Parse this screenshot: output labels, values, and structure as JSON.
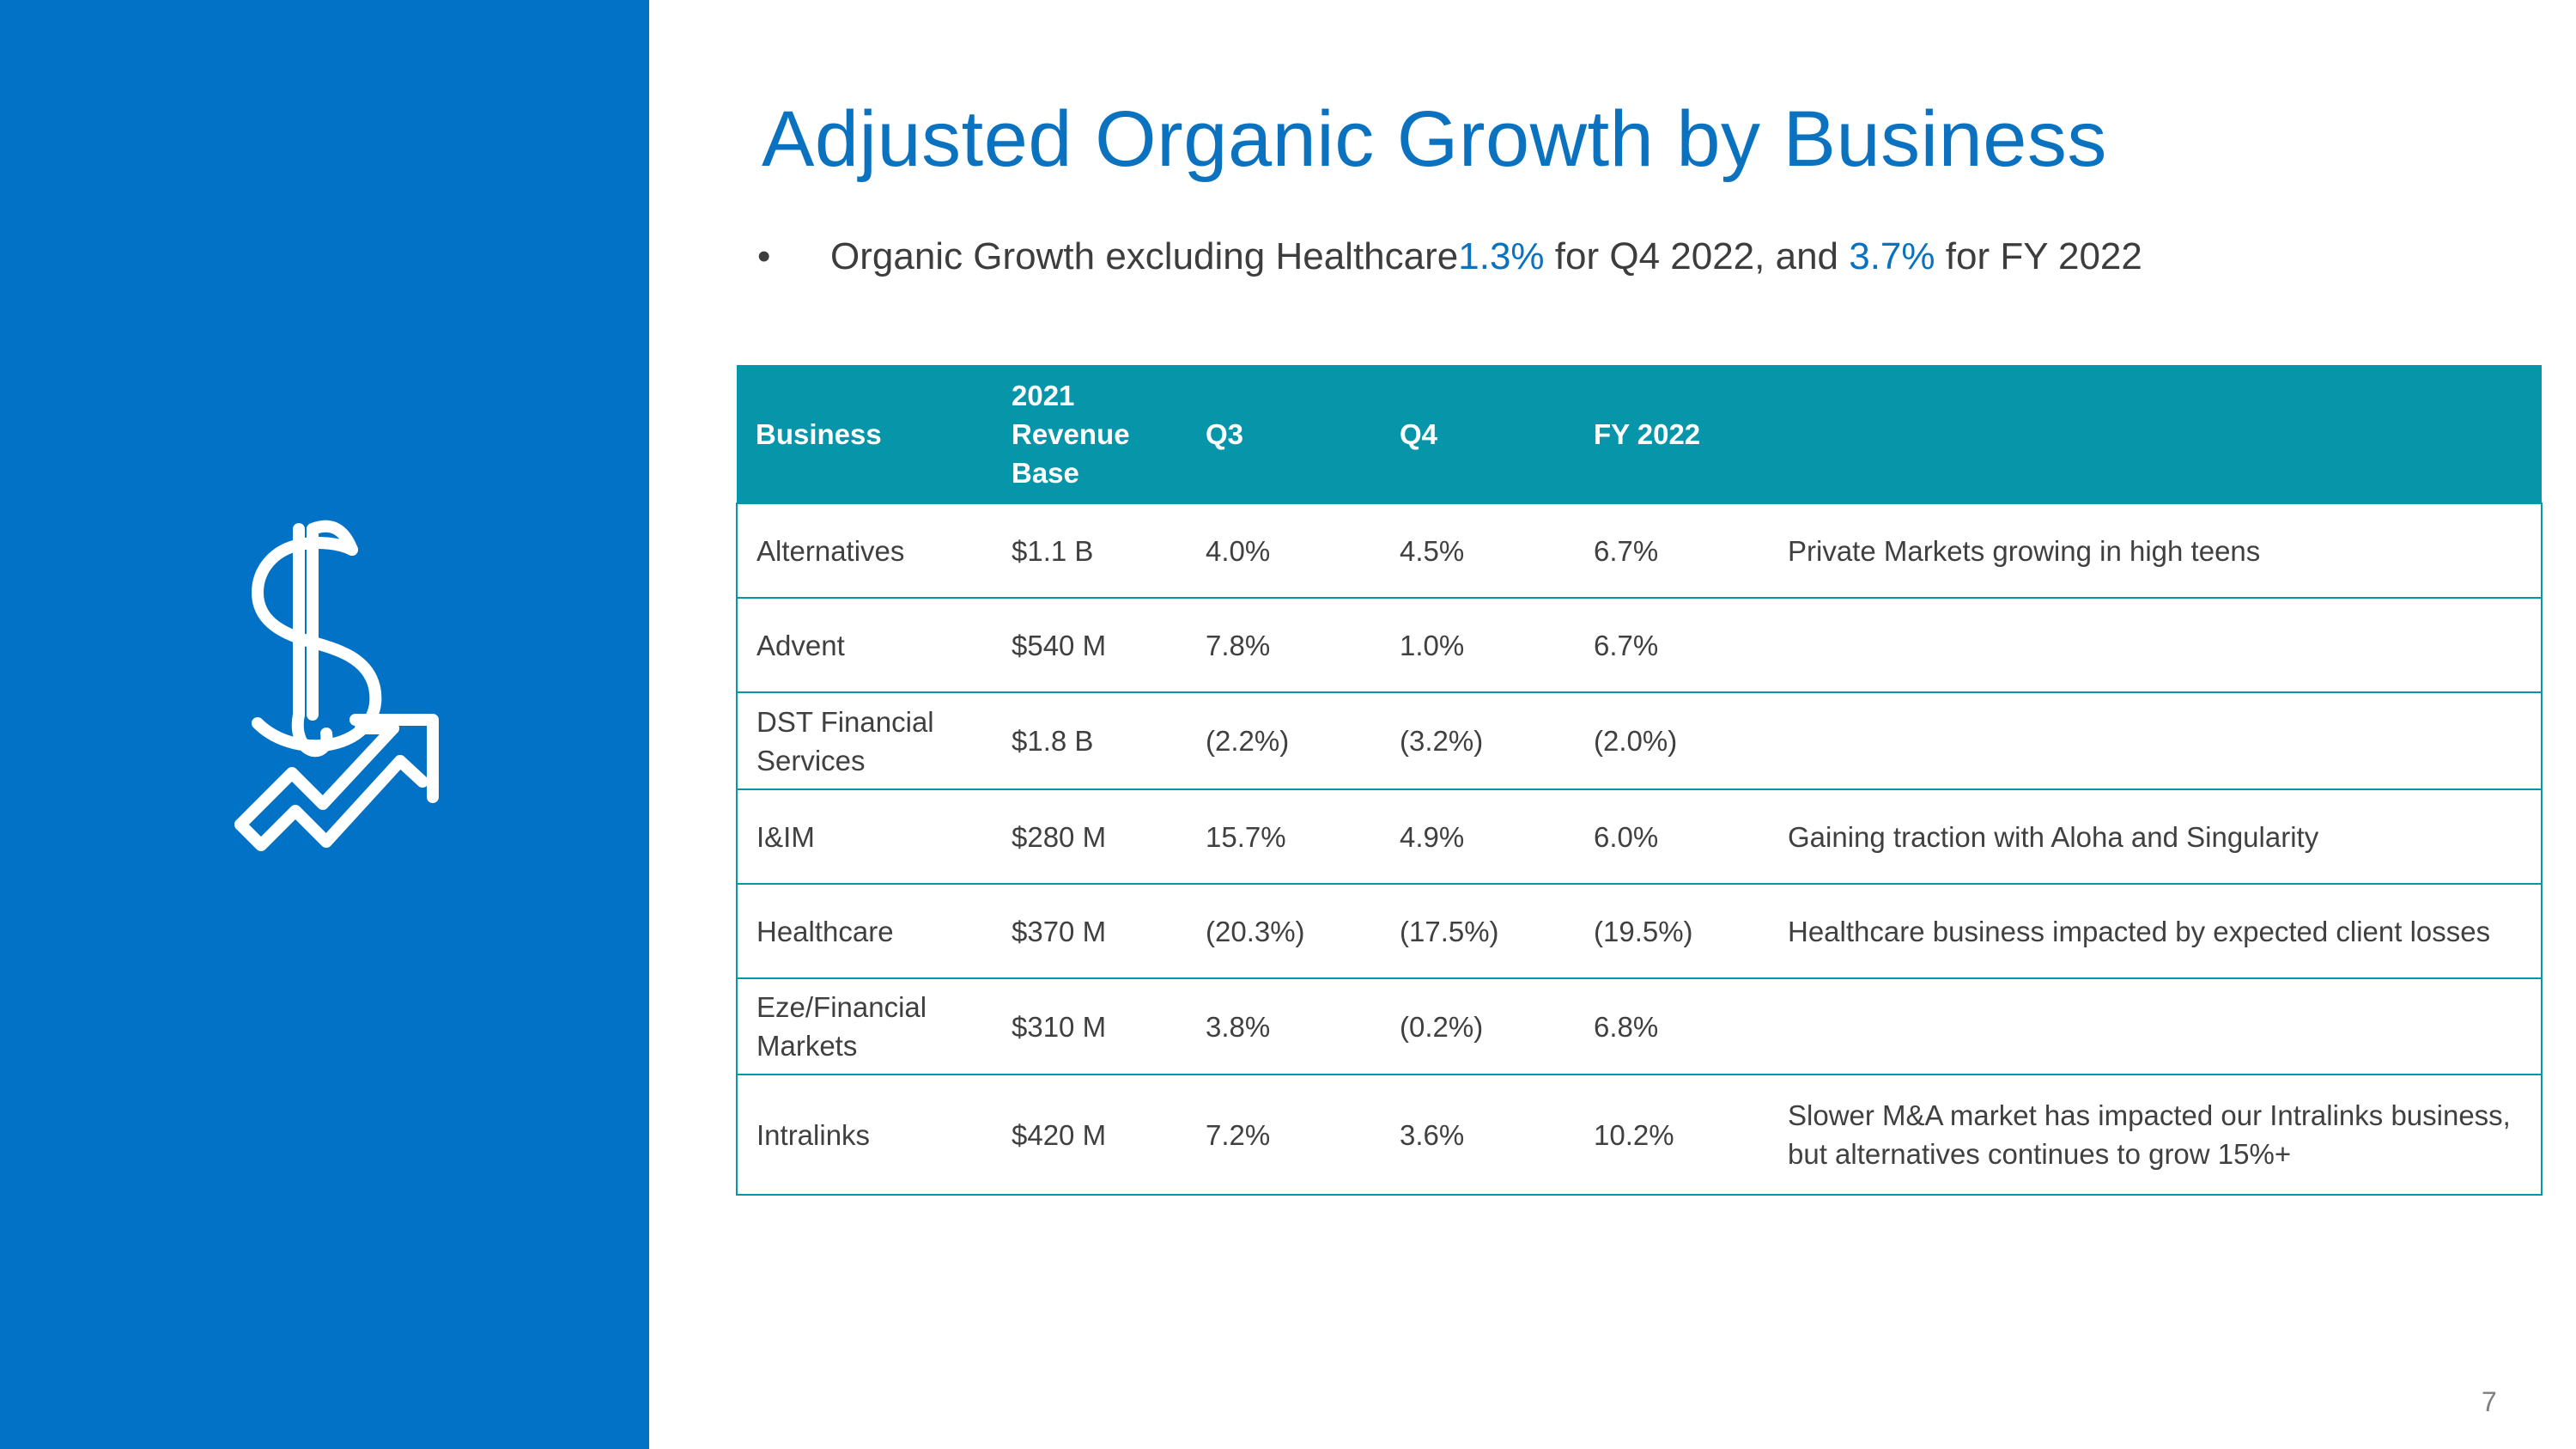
{
  "slide": {
    "title": "Adjusted Organic Growth by Business",
    "bullet": {
      "text_before": "Organic Growth excluding Healthcare",
      "q4_value": "1.3%",
      "text_middle": " for Q4 2022, and ",
      "fy_value": "3.7%",
      "text_after": " for FY 2022"
    },
    "page_number": "7"
  },
  "table": {
    "headers": {
      "business": "Business",
      "revenue_base_line1": "2021",
      "revenue_base_line2": "Revenue",
      "revenue_base_line3": "Base",
      "q3": "Q3",
      "q4": "Q4",
      "fy": "FY 2022",
      "comment": ""
    },
    "rows": [
      {
        "business": "Alternatives",
        "base": "$1.1 B",
        "q3": "4.0%",
        "q4": "4.5%",
        "fy": "6.7%",
        "comment": "Private Markets growing in high teens"
      },
      {
        "business": "Advent",
        "base": "$540 M",
        "q3": "7.8%",
        "q4": "1.0%",
        "fy": "6.7%",
        "comment": ""
      },
      {
        "business": "DST Financial Services",
        "base": "$1.8 B",
        "q3": "(2.2%)",
        "q4": "(3.2%)",
        "fy": "(2.0%)",
        "comment": ""
      },
      {
        "business": "I&IM",
        "base": "$280 M",
        "q3": "15.7%",
        "q4": "4.9%",
        "fy": "6.0%",
        "comment": "Gaining traction with Aloha and Singularity"
      },
      {
        "business": "Healthcare",
        "base": "$370 M",
        "q3": "(20.3%)",
        "q4": "(17.5%)",
        "fy": "(19.5%)",
        "comment": "Healthcare business impacted by expected client losses"
      },
      {
        "business": "Eze/Financial Markets",
        "base": "$310 M",
        "q3": "3.8%",
        "q4": "(0.2%)",
        "fy": "6.8%",
        "comment": ""
      },
      {
        "business": "Intralinks",
        "base": "$420 M",
        "q3": "7.2%",
        "q4": "3.6%",
        "fy": "10.2%",
        "comment": "Slower M&A market has impacted our Intralinks business, but alternatives continues to grow 15%+"
      }
    ]
  },
  "colors": {
    "left_panel": "#0172c6",
    "title": "#0b72c0",
    "table_header": "#0795a9",
    "business_text": "#05737f"
  },
  "icons": {
    "left_panel_icon": "dollar-growth-arrow-icon"
  }
}
